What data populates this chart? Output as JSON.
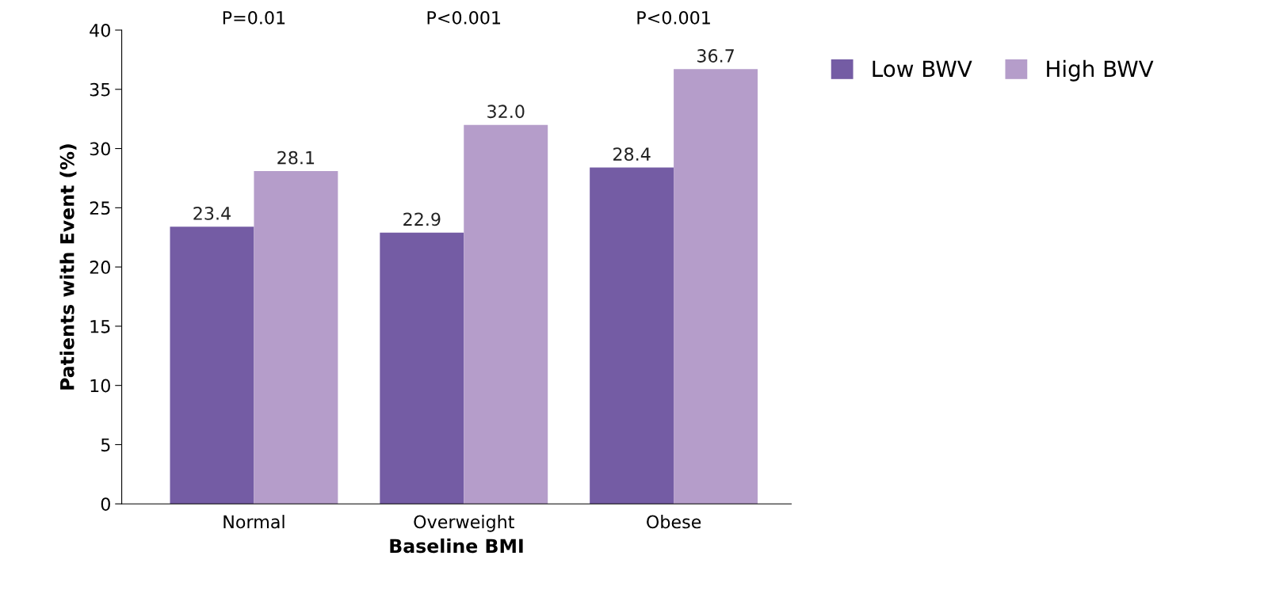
{
  "chart_data": {
    "type": "bar",
    "xlabel": "Baseline BMI",
    "ylabel": "Patients with Event (%)",
    "categories": [
      "Normal",
      "Overweight",
      "Obese"
    ],
    "series": [
      {
        "name": "Low BWV",
        "color": "#745ca4",
        "values": [
          23.4,
          22.9,
          28.4
        ]
      },
      {
        "name": "High BWV",
        "color": "#b59dca",
        "values": [
          28.1,
          32.0,
          36.7
        ]
      }
    ],
    "ylim": [
      0,
      40
    ],
    "yticks": [
      0,
      5,
      10,
      15,
      20,
      25,
      30,
      35,
      40
    ],
    "value_labels": [
      [
        "23.4",
        "22.9",
        "28.4"
      ],
      [
        "28.1",
        "32.0",
        "36.7"
      ]
    ],
    "annotations": [
      "P=0.01",
      "P<0.001",
      "P<0.001"
    ],
    "grid": false,
    "legend": "top right"
  }
}
